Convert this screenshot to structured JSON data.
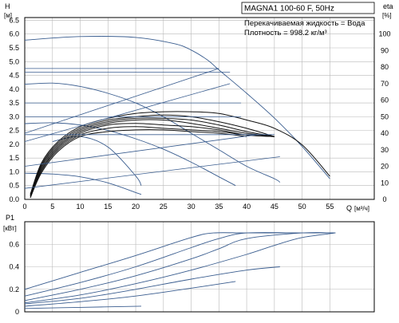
{
  "chart_data": [
    {
      "type": "line",
      "title": "MAGNA1 100-60 F, 50Hz",
      "annotations": [
        "Перекачиваемая жидкость = Вода",
        "Плотность = 998.2 кг/м³"
      ],
      "xlabel": "Q",
      "xunit": "[м³/ч]",
      "ylabel": "H",
      "yunit": "[м]",
      "y2label": "eta",
      "y2unit": "[%]",
      "xlim": [
        0,
        63
      ],
      "ylim": [
        0,
        6.6
      ],
      "y2lim": [
        0,
        110
      ],
      "xticks": [
        0,
        5,
        10,
        15,
        20,
        25,
        30,
        35,
        40,
        45,
        50,
        55
      ],
      "yticks": [
        0.0,
        0.5,
        1.0,
        1.5,
        2.0,
        2.5,
        3.0,
        3.5,
        4.0,
        4.5,
        5.0,
        5.5,
        6.0,
        6.5
      ],
      "y2ticks": [
        0,
        10,
        20,
        30,
        40,
        50,
        60,
        70,
        80,
        90,
        100
      ],
      "grid": true,
      "series": [
        {
          "group": "head",
          "x": [
            0,
            10,
            20,
            27,
            30,
            33,
            35,
            40,
            45,
            50,
            55
          ],
          "values": [
            5.78,
            5.91,
            5.88,
            5.65,
            5.42,
            5.05,
            4.7,
            3.85,
            2.95,
            1.92,
            0.75
          ]
        },
        {
          "group": "head",
          "x": [
            0,
            5,
            10,
            15,
            20,
            25,
            30,
            35,
            40,
            45,
            46
          ],
          "values": [
            4.18,
            4.22,
            4.1,
            3.85,
            3.5,
            3.0,
            2.4,
            1.8,
            1.2,
            0.75,
            0.62
          ]
        },
        {
          "group": "head",
          "x": [
            0,
            5,
            10,
            15,
            20,
            25,
            30,
            35,
            38
          ],
          "values": [
            2.75,
            2.78,
            2.7,
            2.5,
            2.2,
            1.82,
            1.35,
            0.82,
            0.5
          ]
        },
        {
          "group": "head",
          "x": [
            5,
            10,
            15,
            20,
            21
          ],
          "values": [
            2.1,
            2.28,
            1.9,
            0.85,
            0.5
          ]
        },
        {
          "group": "head",
          "x": [
            0,
            5,
            10,
            15,
            20,
            21
          ],
          "values": [
            0.95,
            0.92,
            0.82,
            0.6,
            0.25,
            0.18
          ]
        },
        {
          "group": "efficiency",
          "x": [
            1,
            3,
            6,
            10,
            15,
            20,
            25,
            30,
            35,
            40,
            45,
            50,
            55
          ],
          "values": [
            3,
            22,
            35,
            44,
            49,
            52,
            53,
            53,
            52,
            48,
            43,
            33,
            14
          ]
        },
        {
          "group": "efficiency",
          "x": [
            1,
            3,
            6,
            10,
            15,
            20,
            25,
            30,
            35,
            40,
            45
          ],
          "values": [
            3,
            21,
            34,
            43,
            48,
            50,
            51,
            50,
            47,
            43,
            38
          ]
        },
        {
          "group": "efficiency",
          "x": [
            1,
            3,
            6,
            10,
            15,
            20,
            25,
            30,
            35,
            40,
            45
          ],
          "values": [
            2,
            20,
            33,
            42,
            47,
            49,
            49,
            48,
            45,
            41,
            38
          ]
        },
        {
          "group": "efficiency",
          "x": [
            1,
            3,
            6,
            10,
            15,
            20,
            25,
            30,
            35,
            40,
            45
          ],
          "values": [
            2,
            19,
            32,
            41,
            46,
            48,
            48,
            46,
            43,
            40,
            38
          ]
        },
        {
          "group": "efficiency",
          "x": [
            1,
            3,
            6,
            10,
            15,
            20,
            25,
            30,
            35,
            40,
            45
          ],
          "values": [
            2,
            18,
            31,
            40,
            45,
            46,
            45,
            44,
            42,
            39,
            38
          ]
        },
        {
          "group": "efficiency",
          "x": [
            1,
            3,
            6,
            10,
            15,
            20,
            25,
            30,
            35,
            40,
            45
          ],
          "values": [
            1,
            17,
            30,
            39,
            43,
            44,
            43,
            42,
            41,
            39,
            38
          ]
        },
        {
          "group": "efficiency",
          "x": [
            1,
            3,
            6,
            10,
            15,
            20,
            25,
            30,
            35,
            40
          ],
          "values": [
            1,
            16,
            29,
            38,
            41,
            42,
            42,
            41,
            40,
            38
          ]
        },
        {
          "group": "system",
          "x": [
            0,
            35
          ],
          "values": [
            2.4,
            4.75
          ]
        },
        {
          "group": "system",
          "x": [
            0,
            37
          ],
          "values": [
            2.1,
            4.2
          ]
        },
        {
          "group": "system",
          "x": [
            0,
            42
          ],
          "values": [
            1.2,
            2.35
          ]
        },
        {
          "group": "system",
          "x": [
            0,
            46
          ],
          "values": [
            0.4,
            1.55
          ]
        },
        {
          "group": "level",
          "x": [
            0,
            35
          ],
          "values": [
            4.75,
            4.75
          ]
        },
        {
          "group": "level",
          "x": [
            0,
            37
          ],
          "values": [
            4.62,
            4.62
          ]
        },
        {
          "group": "level",
          "x": [
            0,
            39
          ],
          "values": [
            3.5,
            3.5
          ]
        },
        {
          "group": "level",
          "x": [
            0,
            39
          ],
          "values": [
            3.0,
            3.0
          ]
        },
        {
          "group": "level",
          "x": [
            0,
            45
          ],
          "values": [
            2.35,
            2.35
          ]
        }
      ]
    },
    {
      "type": "line",
      "ylabel": "P1",
      "yunit": "[кВт]",
      "xlim": [
        0,
        63
      ],
      "ylim": [
        0,
        0.8
      ],
      "yticks": [
        0,
        0.2,
        0.4,
        0.6
      ],
      "grid": true,
      "series": [
        {
          "x": [
            0,
            10,
            20,
            30,
            34,
            40,
            50,
            56
          ],
          "values": [
            0.2,
            0.35,
            0.5,
            0.66,
            0.7,
            0.7,
            0.7,
            0.7
          ]
        },
        {
          "x": [
            0,
            10,
            20,
            30,
            35,
            40,
            50,
            56
          ],
          "values": [
            0.14,
            0.26,
            0.4,
            0.57,
            0.65,
            0.7,
            0.7,
            0.7
          ]
        },
        {
          "x": [
            0,
            10,
            20,
            30,
            35,
            40,
            50,
            56
          ],
          "values": [
            0.1,
            0.2,
            0.32,
            0.47,
            0.56,
            0.65,
            0.7,
            0.7
          ]
        },
        {
          "x": [
            0,
            10,
            20,
            30,
            40,
            45,
            50,
            56
          ],
          "values": [
            0.08,
            0.15,
            0.25,
            0.37,
            0.51,
            0.59,
            0.66,
            0.7
          ]
        },
        {
          "x": [
            0,
            10,
            20,
            30,
            40,
            46
          ],
          "values": [
            0.07,
            0.12,
            0.2,
            0.29,
            0.37,
            0.4
          ]
        },
        {
          "x": [
            0,
            10,
            20,
            30,
            38
          ],
          "values": [
            0.05,
            0.09,
            0.14,
            0.21,
            0.27
          ]
        },
        {
          "x": [
            0,
            10,
            21
          ],
          "values": [
            0.03,
            0.04,
            0.05
          ]
        }
      ]
    }
  ]
}
